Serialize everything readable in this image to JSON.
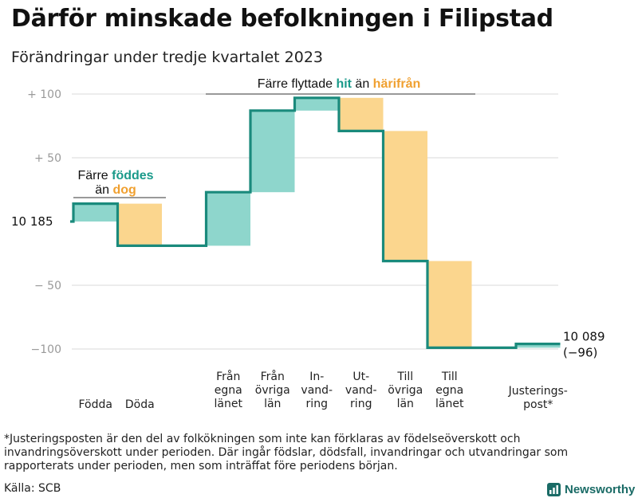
{
  "title": "Därför minskade befolkningen i Filipstad",
  "subtitle": "Förändringar under tredje kvartalet 2023",
  "footnote": "*Justeringsposten är den del av folkökningen som inte kan förklaras av födelseöverskott och invandringsöverskott under perioden. Där ingår födslar, dödsfall, invandringar och utvandringar som rapporterats under perioden, men som inträffat före periodens början.",
  "source": "Källa: SCB",
  "brand": "Newsworthy",
  "colors": {
    "increase": "#8ed6cc",
    "decrease": "#fbd68e",
    "line": "#1a8a7c",
    "hit": "#1a9a8a",
    "dog": "#f0a030",
    "grid": "#d8d8d8",
    "tick": "#9a9a9a"
  },
  "chart_data": {
    "type": "waterfall",
    "start_value": 10185,
    "start_label": "10  185",
    "end_value": 10089,
    "end_label": "10 089",
    "end_change_label": "(−96)",
    "ylim": [
      -100,
      100
    ],
    "yticks": [
      {
        "value": 100,
        "label": "+  100"
      },
      {
        "value": 50,
        "label": "+  50"
      },
      {
        "value": -50,
        "label": "−  50"
      },
      {
        "value": -100,
        "label": "−100"
      }
    ],
    "steps": [
      {
        "label": [
          "Födda"
        ],
        "value": 14
      },
      {
        "label": [
          "Döda"
        ],
        "value": -33
      },
      {
        "label": [],
        "value": 0
      },
      {
        "label": [
          "Från",
          "egna",
          "länet"
        ],
        "value": 42
      },
      {
        "label": [
          "Från",
          "övriga",
          "län"
        ],
        "value": 64
      },
      {
        "label": [
          "In-",
          "vand-",
          "ring"
        ],
        "value": 10
      },
      {
        "label": [
          "Ut-",
          "vand-",
          "ring"
        ],
        "value": -26
      },
      {
        "label": [
          "Till",
          "övriga",
          "län"
        ],
        "value": -102
      },
      {
        "label": [
          "Till",
          "egna",
          "länet"
        ],
        "value": -68
      },
      {
        "label": [],
        "value": 0
      },
      {
        "label": [
          "Justerings-",
          "post*"
        ],
        "value": 3
      }
    ],
    "annotations": [
      {
        "parts": [
          {
            "text": "Färre ",
            "style": "plain"
          },
          {
            "text": "föddes",
            "style": "hit"
          }
        ],
        "line2": [
          {
            "text": "än ",
            "style": "plain"
          },
          {
            "text": "dog",
            "style": "dog"
          }
        ]
      },
      {
        "parts": [
          {
            "text": "Färre flyttade ",
            "style": "plain"
          },
          {
            "text": "hit",
            "style": "hit"
          },
          {
            "text": " än ",
            "style": "plain"
          },
          {
            "text": "härifrån",
            "style": "dog"
          }
        ]
      }
    ]
  }
}
